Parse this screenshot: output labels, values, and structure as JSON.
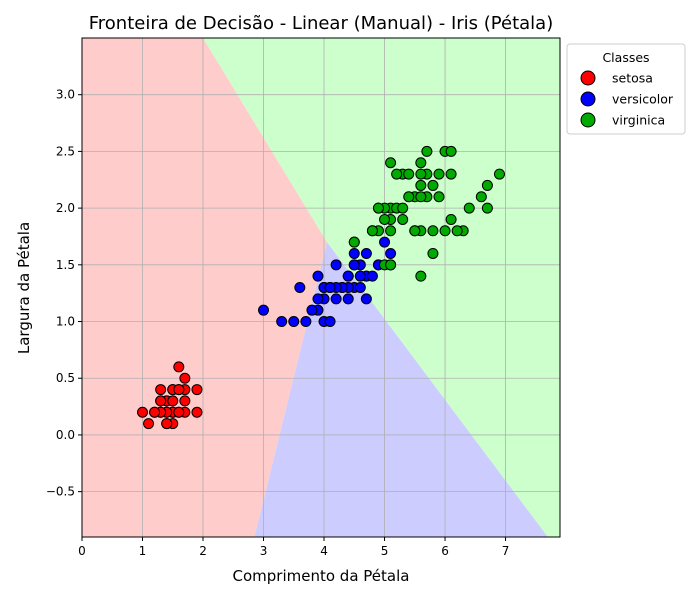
{
  "chart_data": {
    "type": "scatter",
    "title": "Fronteira de Decisão - Linear (Manual) - Iris (Pétala)",
    "xlabel": "Comprimento da Pétala",
    "ylabel": "Largura da Pétala",
    "xlim": [
      0,
      7.9
    ],
    "ylim": [
      -0.9,
      3.5
    ],
    "xticks": [
      0,
      1,
      2,
      3,
      4,
      5,
      6,
      7
    ],
    "yticks": [
      -0.5,
      0.0,
      0.5,
      1.0,
      1.5,
      2.0,
      2.5,
      3.0
    ],
    "xtick_labels": [
      "0",
      "1",
      "2",
      "3",
      "4",
      "5",
      "6",
      "7"
    ],
    "ytick_labels": [
      "−0.5",
      "0.0",
      "0.5",
      "1.0",
      "1.5",
      "2.0",
      "2.5",
      "3.0"
    ],
    "grid": true,
    "legend": {
      "title": "Classes",
      "placement": "outside-upper-right",
      "entries": [
        "setosa",
        "versicolor",
        "virginica"
      ]
    },
    "regions": [
      {
        "class": "setosa",
        "color": "#ffcccc",
        "polygon": [
          [
            0,
            -0.9
          ],
          [
            2.85,
            -0.9
          ],
          [
            4.05,
            1.7
          ],
          [
            2.0,
            3.5
          ],
          [
            0,
            3.5
          ]
        ]
      },
      {
        "class": "versicolor",
        "color": "#ccccff",
        "polygon": [
          [
            2.85,
            -0.9
          ],
          [
            7.7,
            -0.9
          ],
          [
            4.05,
            1.7
          ]
        ]
      },
      {
        "class": "virginica",
        "color": "#ccffcc",
        "polygon": [
          [
            2.0,
            3.5
          ],
          [
            4.05,
            1.7
          ],
          [
            7.7,
            -0.9
          ],
          [
            7.9,
            -0.9
          ],
          [
            7.9,
            3.5
          ]
        ]
      }
    ],
    "series": [
      {
        "name": "setosa",
        "color": "#ff0000",
        "points": [
          [
            1.4,
            0.2
          ],
          [
            1.3,
            0.2
          ],
          [
            1.5,
            0.2
          ],
          [
            1.7,
            0.4
          ],
          [
            1.4,
            0.3
          ],
          [
            1.5,
            0.1
          ],
          [
            1.5,
            0.2
          ],
          [
            1.6,
            0.2
          ],
          [
            1.4,
            0.1
          ],
          [
            1.1,
            0.1
          ],
          [
            1.2,
            0.2
          ],
          [
            1.5,
            0.4
          ],
          [
            1.3,
            0.4
          ],
          [
            1.4,
            0.3
          ],
          [
            1.7,
            0.3
          ],
          [
            1.5,
            0.3
          ],
          [
            1.7,
            0.2
          ],
          [
            1.0,
            0.2
          ],
          [
            1.7,
            0.5
          ],
          [
            1.9,
            0.2
          ],
          [
            1.6,
            0.4
          ],
          [
            1.5,
            0.2
          ],
          [
            1.6,
            0.2
          ],
          [
            1.3,
            0.3
          ],
          [
            1.4,
            0.2
          ],
          [
            1.6,
            0.6
          ],
          [
            1.9,
            0.4
          ],
          [
            1.3,
            0.2
          ],
          [
            1.5,
            0.4
          ],
          [
            1.6,
            0.4
          ],
          [
            1.2,
            0.2
          ],
          [
            1.4,
            0.1
          ],
          [
            1.3,
            0.3
          ]
        ]
      },
      {
        "name": "versicolor",
        "color": "#0000ff",
        "points": [
          [
            4.7,
            1.4
          ],
          [
            4.5,
            1.5
          ],
          [
            4.9,
            1.5
          ],
          [
            4.0,
            1.3
          ],
          [
            4.6,
            1.5
          ],
          [
            4.5,
            1.3
          ],
          [
            4.7,
            1.6
          ],
          [
            3.3,
            1.0
          ],
          [
            4.6,
            1.3
          ],
          [
            3.9,
            1.4
          ],
          [
            3.5,
            1.0
          ],
          [
            4.2,
            1.5
          ],
          [
            4.0,
            1.0
          ],
          [
            4.7,
            1.4
          ],
          [
            3.6,
            1.3
          ],
          [
            4.4,
            1.4
          ],
          [
            4.5,
            1.5
          ],
          [
            4.1,
            1.0
          ],
          [
            3.9,
            1.1
          ],
          [
            4.8,
            1.8
          ],
          [
            4.0,
            1.3
          ],
          [
            4.9,
            1.5
          ],
          [
            4.7,
            1.2
          ],
          [
            4.3,
            1.3
          ],
          [
            4.4,
            1.4
          ],
          [
            4.8,
            1.4
          ],
          [
            5.0,
            1.7
          ],
          [
            3.8,
            1.1
          ],
          [
            3.7,
            1.0
          ],
          [
            5.1,
            1.6
          ],
          [
            4.5,
            1.6
          ],
          [
            4.4,
            1.3
          ],
          [
            4.1,
            1.3
          ],
          [
            4.0,
            1.2
          ],
          [
            4.4,
            1.2
          ],
          [
            4.6,
            1.4
          ],
          [
            3.0,
            1.1
          ],
          [
            4.3,
            1.3
          ],
          [
            4.2,
            1.2
          ],
          [
            4.2,
            1.3
          ],
          [
            3.9,
            1.2
          ],
          [
            4.1,
            1.3
          ],
          [
            4.5,
            1.7
          ],
          [
            4.6,
            1.4
          ],
          [
            5.1,
            1.5
          ],
          [
            4.9,
            2.0
          ]
        ]
      },
      {
        "name": "virginica",
        "color": "#00aa00",
        "points": [
          [
            6.0,
            2.5
          ],
          [
            5.1,
            1.9
          ],
          [
            5.9,
            2.1
          ],
          [
            5.6,
            1.8
          ],
          [
            5.8,
            2.2
          ],
          [
            6.6,
            2.1
          ],
          [
            4.5,
            1.7
          ],
          [
            6.3,
            1.8
          ],
          [
            5.8,
            1.8
          ],
          [
            6.1,
            2.5
          ],
          [
            5.1,
            2.0
          ],
          [
            5.3,
            1.9
          ],
          [
            5.5,
            2.1
          ],
          [
            5.0,
            2.0
          ],
          [
            5.1,
            2.4
          ],
          [
            5.3,
            2.3
          ],
          [
            5.5,
            1.8
          ],
          [
            6.7,
            2.2
          ],
          [
            6.9,
            2.3
          ],
          [
            5.0,
            1.5
          ],
          [
            5.7,
            2.3
          ],
          [
            4.9,
            2.0
          ],
          [
            6.7,
            2.0
          ],
          [
            4.9,
            1.8
          ],
          [
            5.7,
            2.1
          ],
          [
            6.0,
            1.8
          ],
          [
            4.8,
            1.8
          ],
          [
            5.6,
            2.1
          ],
          [
            5.8,
            1.6
          ],
          [
            6.1,
            1.9
          ],
          [
            6.4,
            2.0
          ],
          [
            5.6,
            2.2
          ],
          [
            5.1,
            1.5
          ],
          [
            5.6,
            1.4
          ],
          [
            6.1,
            2.3
          ],
          [
            5.6,
            2.4
          ],
          [
            5.5,
            1.8
          ],
          [
            5.4,
            2.1
          ],
          [
            5.2,
            2.3
          ],
          [
            5.2,
            2.0
          ],
          [
            5.4,
            2.3
          ],
          [
            5.1,
            1.8
          ],
          [
            5.0,
            1.9
          ],
          [
            5.9,
            2.3
          ],
          [
            6.2,
            1.8
          ],
          [
            5.3,
            2.0
          ],
          [
            5.6,
            2.3
          ],
          [
            5.7,
            2.5
          ]
        ]
      }
    ]
  }
}
